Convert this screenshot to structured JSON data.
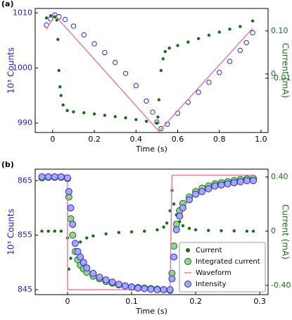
{
  "chart_data": [
    {
      "type": "line",
      "panel": "(a)",
      "xlabel": "Time (s)",
      "ylabel": "10³ Counts",
      "y2label": "Current (mA)",
      "ylabel_color": "#2020c0",
      "y2label_color": "#1a6b1a",
      "xlim": [
        -0.084,
        1.034
      ],
      "xticks": [
        0,
        0.2,
        0.4,
        0.6,
        0.8,
        {
          "value": 1,
          "label": "1.0"
        }
      ],
      "ylim": [
        988.3,
        1010.8
      ],
      "yticks": [
        990,
        1000,
        1010
      ],
      "y2lim": [
        -0.136,
        0.152
      ],
      "y2ticks": [
        {
          "value": 0.1,
          "label": "0.10"
        },
        0,
        -0.01
      ],
      "series": [
        {
          "style": "circles",
          "color": "#2a2ad0",
          "fill": "none",
          "x": [
            -0.03,
            -0.01,
            0.01,
            0.03,
            0.06,
            0.1,
            0.15,
            0.2,
            0.25,
            0.3,
            0.35,
            0.4,
            0.45,
            0.48,
            0.5,
            0.52,
            0.55,
            0.6,
            0.65,
            0.7,
            0.75,
            0.8,
            0.85,
            0.9,
            0.93,
            0.96
          ],
          "values": [
            1007.8,
            1008.9,
            1009.6,
            1009.3,
            1008.8,
            1007.6,
            1006,
            1004.4,
            1002.8,
            1001,
            999,
            996.8,
            994,
            992,
            990.2,
            989,
            989.8,
            991.8,
            993.8,
            995.6,
            997.4,
            999.2,
            1001.2,
            1003.2,
            1004.6,
            1006.4
          ]
        },
        {
          "style": "line",
          "color": "#e87ea1",
          "x": [
            -0.03,
            0.01,
            0.51,
            0.96
          ],
          "values": [
            1007,
            1009.6,
            988.5,
            1007.2
          ]
        },
        {
          "style": "dots",
          "color": "#1a6b1a",
          "axis": "y2",
          "x": [
            -0.03,
            -0.01,
            0.01,
            0.02,
            0.025,
            0.03,
            0.035,
            0.04,
            0.05,
            0.07,
            0.1,
            0.15,
            0.2,
            0.25,
            0.3,
            0.35,
            0.4,
            0.45,
            0.5,
            0.505,
            0.51,
            0.52,
            0.53,
            0.54,
            0.56,
            0.6,
            0.65,
            0.7,
            0.75,
            0.8,
            0.85,
            0.9,
            0.96
          ],
          "values": [
            0.13,
            0.135,
            0.132,
            0.125,
            0.08,
            0.008,
            -0.03,
            -0.05,
            -0.072,
            -0.085,
            -0.088,
            -0.09,
            -0.093,
            -0.096,
            -0.099,
            -0.102,
            -0.106,
            -0.11,
            -0.114,
            -0.1,
            -0.06,
            0.008,
            0.035,
            0.052,
            0.06,
            0.066,
            0.074,
            0.082,
            0.09,
            0.097,
            0.104,
            0.11,
            0.123
          ]
        }
      ]
    },
    {
      "type": "line",
      "panel": "(b)",
      "xlabel": "Time (s)",
      "ylabel": "10³ Counts",
      "y2label": "Current (mA)",
      "ylabel_color": "#2020c0",
      "y2label_color": "#1a6b1a",
      "legend": "lower right",
      "xlim": [
        -0.0505,
        0.313
      ],
      "xticks": [
        0,
        0.1,
        0.2,
        0.3
      ],
      "ylim": [
        844.1,
        867.1
      ],
      "yticks": [
        845,
        855,
        865
      ],
      "y2lim": [
        -0.468,
        0.457
      ],
      "y2ticks": [
        {
          "value": -0.4,
          "label": "-0.40"
        },
        0,
        {
          "value": 0.4,
          "label": "0.40"
        }
      ],
      "series": [
        {
          "name": "Current",
          "style": "dots",
          "color": "#1a6b1a",
          "axis": "y2",
          "x": [
            -0.04,
            -0.03,
            -0.02,
            -0.01,
            0,
            0.002,
            0.005,
            0.01,
            0.02,
            0.03,
            0.04,
            0.06,
            0.08,
            0.1,
            0.12,
            0.14,
            0.15,
            0.155,
            0.16,
            0.163,
            0.166,
            0.17,
            0.175,
            0.18,
            0.19,
            0.2,
            0.22,
            0.24,
            0.26,
            0.28,
            0.29
          ],
          "values": [
            0,
            0,
            0,
            0,
            -0.05,
            -0.28,
            -0.2,
            -0.14,
            -0.08,
            -0.05,
            -0.035,
            -0.02,
            -0.01,
            -0.005,
            0,
            0.01,
            0.03,
            0.06,
            0.15,
            0.3,
            0.2,
            0.12,
            0.07,
            0.04,
            0.02,
            0.01,
            0.005,
            0.003,
            0.002,
            0,
            0
          ]
        },
        {
          "name": "Integrated current",
          "style": "circles",
          "color": "#1a6b1a",
          "fill": "#93d493",
          "x": [
            -0.04,
            -0.03,
            -0.02,
            -0.01,
            0,
            0.002,
            0.005,
            0.008,
            0.012,
            0.016,
            0.02,
            0.025,
            0.03,
            0.04,
            0.05,
            0.06,
            0.07,
            0.08,
            0.09,
            0.1,
            0.11,
            0.12,
            0.13,
            0.14,
            0.15,
            0.16,
            0.163,
            0.166,
            0.17,
            0.175,
            0.18,
            0.19,
            0.2,
            0.21,
            0.22,
            0.23,
            0.24,
            0.25,
            0.26,
            0.27,
            0.28,
            0.29
          ],
          "values": [
            865.5,
            865.6,
            865.6,
            865.6,
            865.4,
            862,
            858,
            855,
            852,
            850.5,
            849.5,
            848.8,
            848.2,
            847.5,
            847,
            846.5,
            846.2,
            845.9,
            845.7,
            845.5,
            845.4,
            845.3,
            845.2,
            845.1,
            845,
            844.9,
            848,
            853,
            857,
            859.5,
            860.8,
            862,
            863,
            863.6,
            864,
            864.4,
            864.6,
            864.8,
            865,
            865.2,
            865.3,
            865.4
          ]
        },
        {
          "name": "Waveform",
          "style": "line",
          "color": "#e87ea1",
          "x": [
            -0.04,
            0,
            0,
            0.16,
            0.163,
            0.29
          ],
          "values": [
            866,
            866,
            845,
            845,
            866,
            866
          ]
        },
        {
          "name": "Intensity",
          "style": "circles",
          "color": "#2a2ad0",
          "fill": "#a8a8f0",
          "x": [
            -0.04,
            -0.03,
            -0.02,
            -0.01,
            0,
            0.002,
            0.005,
            0.008,
            0.012,
            0.016,
            0.02,
            0.025,
            0.03,
            0.04,
            0.05,
            0.06,
            0.07,
            0.08,
            0.09,
            0.1,
            0.11,
            0.12,
            0.13,
            0.14,
            0.15,
            0.16,
            0.163,
            0.166,
            0.17,
            0.175,
            0.18,
            0.19,
            0.2,
            0.21,
            0.22,
            0.23,
            0.24,
            0.25,
            0.26,
            0.27,
            0.28,
            0.29
          ],
          "values": [
            865.7,
            865.7,
            865.7,
            865.7,
            865.5,
            863,
            860,
            857,
            853.5,
            852,
            851,
            850,
            849,
            848,
            847.3,
            846.8,
            846.4,
            846,
            845.7,
            845.5,
            845.3,
            845.2,
            845.1,
            845,
            845,
            845,
            847,
            851,
            856,
            858.5,
            860,
            861.5,
            862.5,
            863,
            863.5,
            864,
            864.2,
            864.4,
            864.6,
            864.8,
            865,
            865
          ]
        }
      ]
    }
  ]
}
